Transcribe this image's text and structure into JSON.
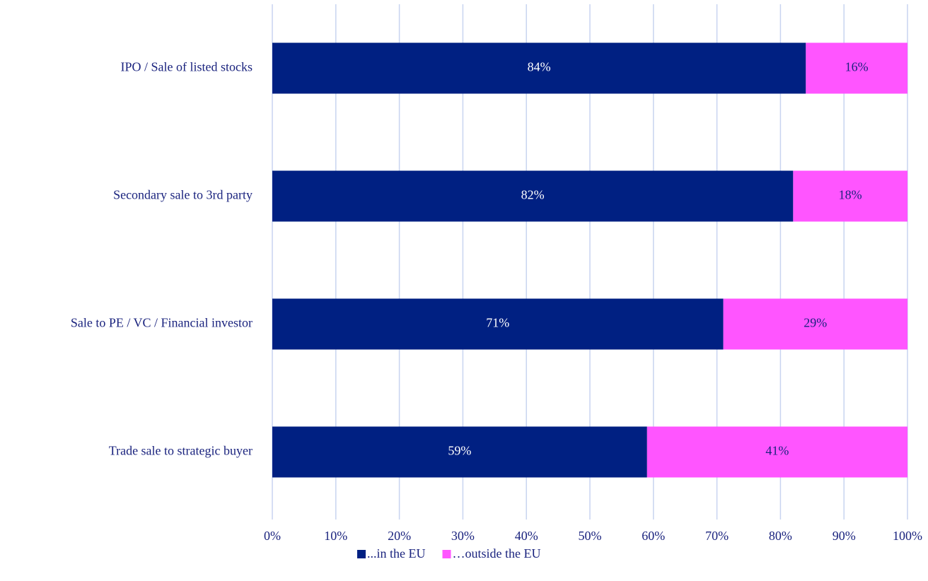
{
  "chart_data": {
    "type": "stacked-barh",
    "categories": [
      "IPO / Sale of listed stocks",
      "Secondary sale to 3rd party",
      "Sale to PE / VC / Financial investor",
      "Trade sale to strategic buyer"
    ],
    "series": [
      {
        "name": "...in the EU",
        "color": "#002082",
        "label_color": "#ffffff",
        "values": [
          84,
          82,
          71,
          59
        ],
        "value_labels": [
          "84%",
          "82%",
          "71%",
          "59%"
        ]
      },
      {
        "name": "…outside the EU",
        "color": "#ff55ff",
        "label_color": "#1a237e",
        "values": [
          16,
          18,
          29,
          41
        ],
        "value_labels": [
          "16%",
          "18%",
          "29%",
          "41%"
        ]
      }
    ],
    "xlim": [
      0,
      100
    ],
    "xticks": [
      {
        "value": 0,
        "label": "0%"
      },
      {
        "value": 10,
        "label": "10%"
      },
      {
        "value": 20,
        "label": "20%"
      },
      {
        "value": 30,
        "label": "30%"
      },
      {
        "value": 40,
        "label": "40%"
      },
      {
        "value": 50,
        "label": "50%"
      },
      {
        "value": 60,
        "label": "60%"
      },
      {
        "value": 70,
        "label": "70%"
      },
      {
        "value": 80,
        "label": "80%"
      },
      {
        "value": 90,
        "label": "90%"
      },
      {
        "value": 100,
        "label": "100%"
      }
    ],
    "grid": true,
    "legend": "bottom"
  }
}
